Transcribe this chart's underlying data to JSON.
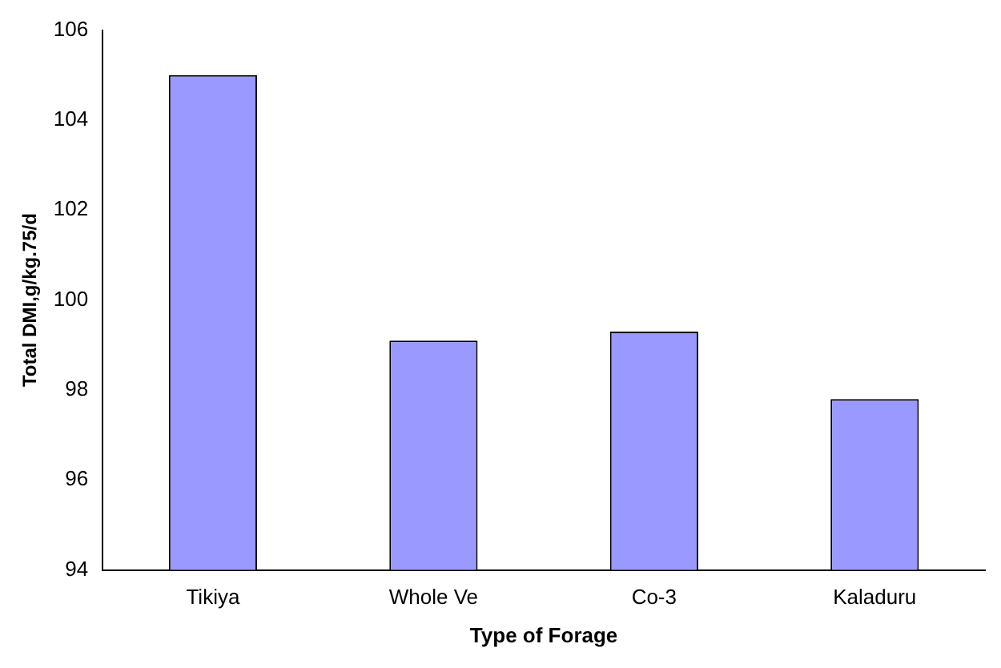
{
  "chart_data": {
    "type": "bar",
    "xlabel": "Type of Forage",
    "ylabel": "Total DMI,g/kg.75/d",
    "categories": [
      "Tikiya",
      "Whole Ve",
      "Co-3",
      "Kaladuru"
    ],
    "series": [
      {
        "color": "#9999ff",
        "values": [
          105,
          99.1,
          99.3,
          97.8
        ]
      }
    ],
    "ylim": [
      94,
      106
    ],
    "yticks": [
      94,
      96,
      98,
      100,
      102,
      104,
      106
    ],
    "grid": false,
    "legend": false
  }
}
